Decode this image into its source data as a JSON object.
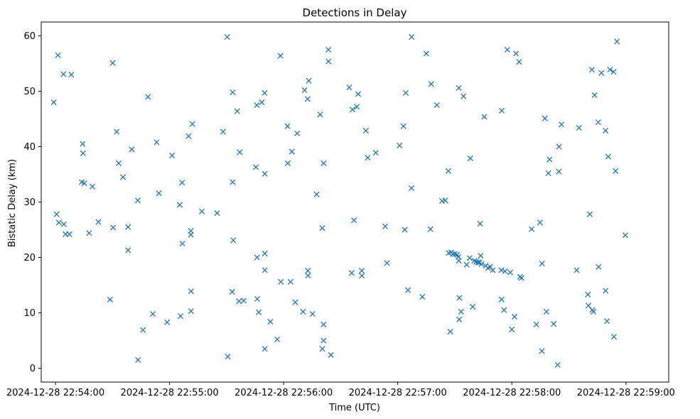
{
  "chart_data": {
    "type": "scatter",
    "title": "Detections in Delay",
    "xlabel": "Time (UTC)",
    "ylabel": "Bistatic Delay (km)",
    "marker": "x",
    "color": "#1f77b4",
    "grid": false,
    "xlim": [
      -7.5,
      322.5
    ],
    "ylim": [
      -2.5,
      62.5
    ],
    "x_tick_seconds": [
      0,
      60,
      120,
      180,
      240,
      300
    ],
    "x_tick_labels": [
      "2024-12-28 22:54:00",
      "2024-12-28 22:55:00",
      "2024-12-28 22:56:00",
      "2024-12-28 22:57:00",
      "2024-12-28 22:58:00",
      "2024-12-28 22:59:00"
    ],
    "y_ticks": [
      0,
      10,
      20,
      30,
      40,
      50,
      60
    ],
    "y_tick_labels": [
      "0",
      "10",
      "20",
      "30",
      "40",
      "50",
      "60"
    ],
    "series": [
      {
        "name": "Detections",
        "x_unit": "seconds after 2024-12-28 22:54:00 UTC",
        "points": [
          [
            -0.9,
            48.0
          ],
          [
            0.6,
            27.8
          ],
          [
            1.3,
            56.5
          ],
          [
            1.8,
            26.3
          ],
          [
            4.2,
            53.1
          ],
          [
            4.4,
            26.0
          ],
          [
            5.3,
            24.2
          ],
          [
            7.3,
            24.2
          ],
          [
            8.3,
            53.0
          ],
          [
            13.8,
            33.6
          ],
          [
            14.3,
            40.5
          ],
          [
            14.5,
            38.8
          ],
          [
            15.2,
            33.4
          ],
          [
            17.7,
            24.4
          ],
          [
            19.4,
            32.8
          ],
          [
            22.6,
            26.4
          ],
          [
            28.7,
            12.4
          ],
          [
            30.1,
            55.1
          ],
          [
            30.3,
            25.4
          ],
          [
            32.2,
            42.7
          ],
          [
            33.2,
            37.0
          ],
          [
            35.5,
            34.5
          ],
          [
            38.2,
            25.5
          ],
          [
            38.2,
            21.3
          ],
          [
            40.1,
            39.5
          ],
          [
            43.3,
            30.3
          ],
          [
            43.4,
            1.5
          ],
          [
            46.0,
            6.9
          ],
          [
            48.6,
            49.0
          ],
          [
            51.2,
            9.8
          ],
          [
            53.2,
            40.8
          ],
          [
            54.4,
            31.6
          ],
          [
            58.7,
            8.3
          ],
          [
            61.3,
            38.4
          ],
          [
            65.4,
            29.5
          ],
          [
            65.8,
            9.4
          ],
          [
            66.6,
            33.5
          ],
          [
            66.7,
            22.5
          ],
          [
            70.0,
            41.9
          ],
          [
            71.2,
            24.8
          ],
          [
            71.2,
            24.1
          ],
          [
            71.3,
            13.9
          ],
          [
            71.3,
            10.3
          ],
          [
            72.0,
            44.1
          ],
          [
            77.0,
            28.3
          ],
          [
            85.0,
            28.0
          ],
          [
            88.1,
            42.7
          ],
          [
            90.3,
            59.8
          ],
          [
            90.6,
            2.1
          ],
          [
            92.9,
            13.8
          ],
          [
            93.2,
            49.8
          ],
          [
            93.2,
            33.6
          ],
          [
            93.5,
            23.1
          ],
          [
            95.6,
            46.4
          ],
          [
            96.5,
            12.1
          ],
          [
            96.9,
            39.0
          ],
          [
            99.0,
            12.2
          ],
          [
            105.4,
            36.3
          ],
          [
            105.9,
            47.5
          ],
          [
            106.0,
            20.0
          ],
          [
            106.1,
            12.5
          ],
          [
            106.9,
            10.1
          ],
          [
            108.5,
            48.0
          ],
          [
            110.0,
            49.7
          ],
          [
            110.1,
            35.1
          ],
          [
            110.1,
            20.7
          ],
          [
            110.1,
            17.7
          ],
          [
            110.1,
            3.5
          ],
          [
            113.0,
            8.4
          ],
          [
            116.6,
            5.2
          ],
          [
            118.3,
            56.4
          ],
          [
            118.5,
            15.6
          ],
          [
            122.0,
            43.7
          ],
          [
            122.2,
            37.0
          ],
          [
            123.6,
            15.6
          ],
          [
            124.3,
            39.1
          ],
          [
            126.1,
            11.9
          ],
          [
            127.1,
            42.4
          ],
          [
            130.2,
            10.2
          ],
          [
            131.0,
            50.2
          ],
          [
            132.6,
            48.6
          ],
          [
            132.7,
            17.6
          ],
          [
            132.8,
            16.7
          ],
          [
            133.2,
            51.9
          ],
          [
            135.2,
            9.8
          ],
          [
            137.3,
            31.4
          ],
          [
            139.2,
            45.8
          ],
          [
            140.3,
            25.3
          ],
          [
            141.0,
            37.0
          ],
          [
            141.0,
            7.9
          ],
          [
            141.0,
            5.0
          ],
          [
            140.3,
            3.5
          ],
          [
            143.5,
            57.5
          ],
          [
            143.6,
            55.4
          ],
          [
            144.8,
            2.4
          ],
          [
            154.5,
            50.7
          ],
          [
            155.8,
            17.2
          ],
          [
            156.2,
            46.7
          ],
          [
            157.0,
            26.7
          ],
          [
            158.5,
            47.2
          ],
          [
            159.2,
            49.5
          ],
          [
            161.1,
            17.6
          ],
          [
            161.1,
            16.7
          ],
          [
            163.2,
            42.9
          ],
          [
            164.2,
            38.0
          ],
          [
            168.4,
            38.9
          ],
          [
            173.4,
            25.6
          ],
          [
            174.3,
            19.0
          ],
          [
            180.9,
            40.2
          ],
          [
            183.0,
            43.7
          ],
          [
            183.7,
            25.0
          ],
          [
            184.2,
            49.7
          ],
          [
            185.4,
            14.1
          ],
          [
            187.2,
            32.5
          ],
          [
            187.3,
            59.8
          ],
          [
            192.9,
            12.9
          ],
          [
            195.0,
            56.8
          ],
          [
            197.2,
            25.1
          ],
          [
            197.6,
            51.3
          ],
          [
            200.6,
            47.5
          ],
          [
            203.3,
            30.2
          ],
          [
            205.0,
            30.3
          ],
          [
            206.6,
            35.6
          ],
          [
            206.8,
            20.8
          ],
          [
            207.6,
            6.6
          ],
          [
            208.1,
            20.9
          ],
          [
            209.0,
            20.6
          ],
          [
            210.0,
            20.6
          ],
          [
            211.2,
            20.5
          ],
          [
            211.9,
            20.1
          ],
          [
            212.1,
            19.4
          ],
          [
            212.1,
            50.6
          ],
          [
            212.4,
            12.7
          ],
          [
            212.3,
            8.8
          ],
          [
            213.3,
            10.2
          ],
          [
            214.6,
            49.1
          ],
          [
            216.2,
            18.7
          ],
          [
            217.8,
            19.9
          ],
          [
            218.2,
            37.9
          ],
          [
            219.4,
            11.1
          ],
          [
            220.2,
            19.4
          ],
          [
            221.2,
            19.2
          ],
          [
            222.2,
            19.1
          ],
          [
            223.0,
            19.1
          ],
          [
            223.3,
            26.1
          ],
          [
            223.6,
            20.3
          ],
          [
            224.1,
            18.8
          ],
          [
            225.5,
            45.4
          ],
          [
            226.2,
            18.5
          ],
          [
            227.5,
            18.1
          ],
          [
            228.6,
            18.3
          ],
          [
            230.0,
            17.7
          ],
          [
            234.5,
            17.7
          ],
          [
            234.7,
            46.5
          ],
          [
            234.6,
            12.4
          ],
          [
            235.9,
            10.5
          ],
          [
            236.4,
            17.5
          ],
          [
            237.6,
            57.5
          ],
          [
            239.2,
            17.3
          ],
          [
            240.0,
            7.0
          ],
          [
            241.4,
            9.3
          ],
          [
            242.2,
            56.8
          ],
          [
            243.8,
            55.3
          ],
          [
            244.3,
            16.5
          ],
          [
            245.1,
            16.3
          ],
          [
            250.4,
            25.1
          ],
          [
            252.9,
            7.9
          ],
          [
            254.8,
            26.3
          ],
          [
            255.9,
            18.9
          ],
          [
            255.8,
            3.1
          ],
          [
            257.4,
            45.1
          ],
          [
            258.2,
            10.2
          ],
          [
            259.2,
            35.2
          ],
          [
            259.8,
            37.7
          ],
          [
            262.0,
            8.0
          ],
          [
            264.1,
            0.6
          ],
          [
            264.7,
            35.5
          ],
          [
            264.8,
            40.0
          ],
          [
            266.1,
            44.0
          ],
          [
            274.1,
            17.7
          ],
          [
            275.3,
            43.4
          ],
          [
            280.0,
            13.3
          ],
          [
            280.3,
            11.3
          ],
          [
            281.0,
            27.8
          ],
          [
            282.1,
            53.9
          ],
          [
            282.3,
            10.5
          ],
          [
            282.9,
            10.2
          ],
          [
            283.5,
            49.3
          ],
          [
            285.4,
            44.4
          ],
          [
            285.6,
            18.3
          ],
          [
            287.1,
            53.3
          ],
          [
            289.3,
            42.9
          ],
          [
            289.3,
            14.0
          ],
          [
            290.0,
            8.5
          ],
          [
            290.7,
            38.2
          ],
          [
            291.6,
            53.9
          ],
          [
            293.5,
            53.5
          ],
          [
            293.7,
            5.7
          ],
          [
            294.5,
            35.6
          ],
          [
            295.3,
            59.0
          ],
          [
            299.7,
            24.0
          ]
        ]
      }
    ]
  }
}
